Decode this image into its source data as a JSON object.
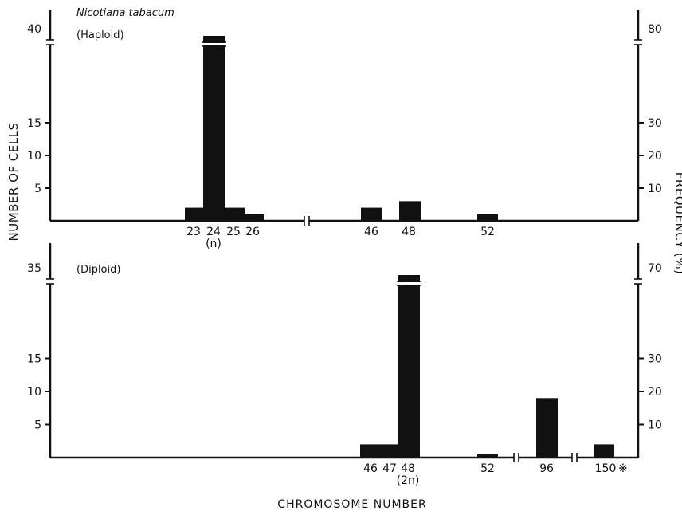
{
  "chart_data": {
    "type": "bar",
    "title": "Nicotiana tabacum",
    "xlabel": "CHROMOSOME NUMBER",
    "ylabel_left": "NUMBER OF CELLS",
    "ylabel_right": "FREQUENCY (%)",
    "panels": [
      {
        "name": "(Haploid)",
        "categories": [
          "23",
          "24",
          "25",
          "26",
          "46",
          "48",
          "52"
        ],
        "sublabels": {
          "24": "(n)"
        },
        "values": [
          2,
          40,
          2,
          1,
          2,
          3,
          1
        ],
        "left_ticks": [
          "5",
          "10",
          "15",
          "40"
        ],
        "right_ticks": [
          "10",
          "20",
          "30",
          "80"
        ],
        "ylim": [
          0,
          19
        ],
        "axis_break": "between 15 and 40"
      },
      {
        "name": "(Diploid)",
        "categories": [
          "46",
          "47",
          "48",
          "52",
          "96",
          "150"
        ],
        "sublabels": {
          "48": "(2n)"
        },
        "values": [
          2,
          2,
          35,
          0.5,
          9,
          2
        ],
        "left_ticks": [
          "5",
          "10",
          "15",
          "35"
        ],
        "right_ticks": [
          "10",
          "20",
          "30",
          "70"
        ],
        "ylim": [
          0,
          19
        ],
        "axis_break": "between 15 and 35",
        "footnote_mark": "※"
      }
    ],
    "grid": false,
    "legend": "none"
  }
}
